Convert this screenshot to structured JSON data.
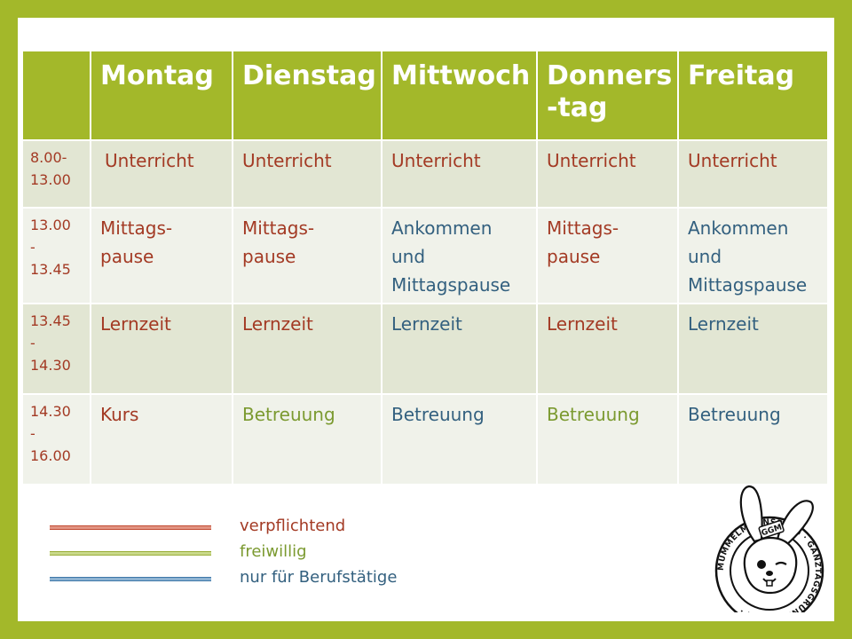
{
  "schedule": {
    "header": [
      "",
      "Montag",
      "Dienstag",
      "Mittwoch",
      "Donners\n-tag",
      "Freitag"
    ],
    "rows": [
      {
        "time": "8.00-\n13.00",
        "cells": [
          {
            "text": "Unterricht",
            "category": "verpflichtend"
          },
          {
            "text": "Unterricht",
            "category": "verpflichtend"
          },
          {
            "text": "Unterricht",
            "category": "verpflichtend"
          },
          {
            "text": "Unterricht",
            "category": "verpflichtend"
          },
          {
            "text": "Unterricht",
            "category": "verpflichtend"
          }
        ]
      },
      {
        "time": "13.00\n-\n13.45",
        "cells": [
          {
            "text": "Mittags-\npause",
            "category": "verpflichtend"
          },
          {
            "text": "Mittags-\npause",
            "category": "verpflichtend"
          },
          {
            "text": "Ankommen\nund\nMittagspause",
            "category": "nur für Berufstätige"
          },
          {
            "text": "Mittags-\npause",
            "category": "verpflichtend"
          },
          {
            "text": "Ankommen\nund\nMittagspause",
            "category": "nur für Berufstätige"
          }
        ]
      },
      {
        "time": "13.45\n-\n14.30",
        "cells": [
          {
            "text": "Lernzeit",
            "category": "verpflichtend"
          },
          {
            "text": "Lernzeit",
            "category": "verpflichtend"
          },
          {
            "text": "Lernzeit",
            "category": "nur für Berufstätige"
          },
          {
            "text": "Lernzeit",
            "category": "verpflichtend"
          },
          {
            "text": "Lernzeit",
            "category": "nur für Berufstätige"
          }
        ]
      },
      {
        "time": "14.30\n-\n16.00",
        "cells": [
          {
            "text": "Kurs",
            "category": "verpflichtend"
          },
          {
            "text": "Betreuung",
            "category": "freiwillig"
          },
          {
            "text": "Betreuung",
            "category": "nur für Berufstätige"
          },
          {
            "text": "Betreuung",
            "category": "freiwillig"
          },
          {
            "text": "Betreuung",
            "category": "nur für Berufstätige"
          }
        ]
      }
    ]
  },
  "legend": [
    {
      "label": "verpflichtend",
      "color": "#a33a24"
    },
    {
      "label": "freiwillig",
      "color": "#7b9a30"
    },
    {
      "label": "nur für Berufstätige",
      "color": "#33607f"
    }
  ],
  "logo": {
    "badge": "GGM",
    "ring_text": "MUMMELMANNSBERG · GANZTAGSGRUNDSCHULE ·"
  },
  "colors": {
    "frame": "#a3b82a",
    "header_bg": "#a3b82a",
    "row_dark": "#e2e6d3",
    "row_light": "#f0f2ea"
  }
}
